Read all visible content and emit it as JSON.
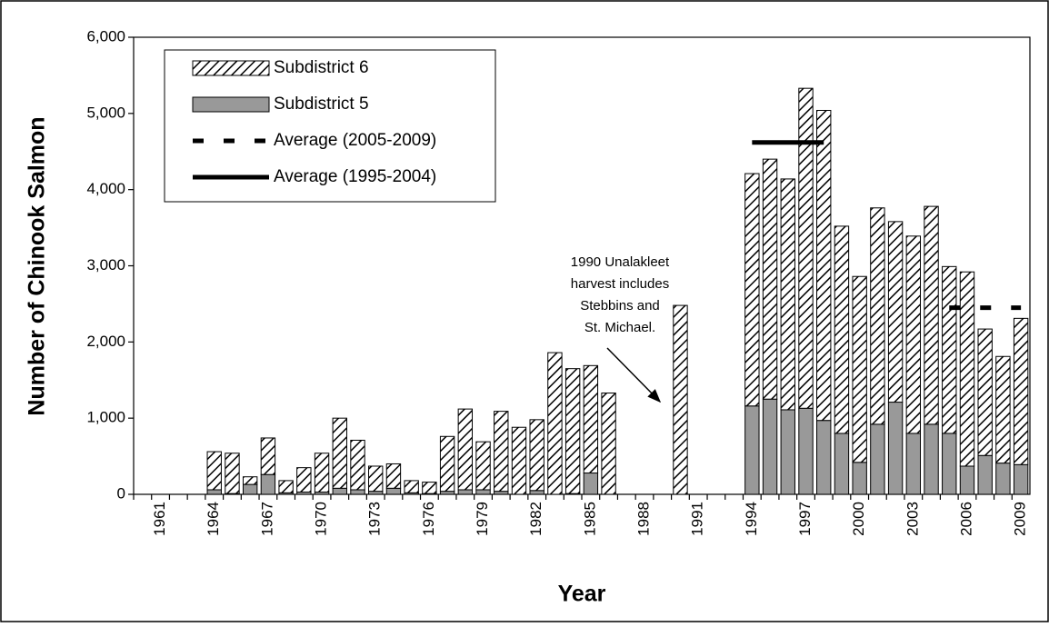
{
  "chart_data": {
    "type": "bar",
    "stacked": true,
    "x_label": "Year",
    "y_label": "Number of Chinook Salmon",
    "categories": [
      null,
      "1961",
      null,
      null,
      "1964",
      null,
      null,
      "1967",
      null,
      null,
      "1970",
      null,
      null,
      "1973",
      null,
      null,
      "1976",
      null,
      null,
      "1979",
      null,
      null,
      "1982",
      null,
      null,
      "1985",
      null,
      null,
      "1988",
      null,
      null,
      "1991",
      null,
      null,
      "1994",
      null,
      null,
      "1997",
      null,
      null,
      "2000",
      null,
      null,
      "2003",
      null,
      null,
      "2006",
      null,
      null,
      "2009"
    ],
    "ylim": [
      0,
      6000
    ],
    "yticks": [
      0,
      {
        "value": 1000,
        "label": "1,000"
      },
      {
        "value": 2000,
        "label": "2,000"
      },
      {
        "value": 3000,
        "label": "3,000"
      },
      {
        "value": 4000,
        "label": "4,000"
      },
      {
        "value": 5000,
        "label": "5,000"
      },
      {
        "value": 6000,
        "label": "6,000"
      }
    ],
    "grid": false,
    "legend": "top-left",
    "series": [
      {
        "name": "Subdistrict 6",
        "type": "bar",
        "fill": "hatch",
        "color": "#000000",
        "values": [
          null,
          null,
          null,
          null,
          500,
          530,
          100,
          480,
          160,
          320,
          510,
          920,
          650,
          330,
          320,
          160,
          150,
          720,
          1060,
          630,
          1050,
          880,
          930,
          1860,
          1640,
          1410,
          1330,
          null,
          null,
          null,
          2480,
          null,
          null,
          null,
          3050,
          3150,
          3030,
          4200,
          4070,
          2720,
          2440,
          2840,
          2370,
          2590,
          2860,
          2190,
          2550,
          1660,
          1400,
          1920
        ]
      },
      {
        "name": "Subdistrict 5",
        "type": "bar",
        "fill": "solid",
        "color": "#999999",
        "values": [
          null,
          null,
          null,
          null,
          60,
          10,
          130,
          260,
          20,
          30,
          30,
          80,
          60,
          40,
          80,
          20,
          10,
          40,
          60,
          60,
          40,
          0,
          50,
          0,
          10,
          280,
          0,
          null,
          null,
          null,
          0,
          null,
          null,
          null,
          1160,
          1250,
          1110,
          1130,
          970,
          800,
          420,
          920,
          1210,
          800,
          920,
          800,
          370,
          510,
          410,
          390
        ]
      },
      {
        "name": "Average (2005-2009)",
        "type": "line",
        "dash": "dashed",
        "color": "#000000",
        "values": [
          null,
          null,
          null,
          null,
          null,
          null,
          null,
          null,
          null,
          null,
          null,
          null,
          null,
          null,
          null,
          null,
          null,
          null,
          null,
          null,
          null,
          null,
          null,
          null,
          null,
          null,
          null,
          null,
          null,
          null,
          null,
          null,
          null,
          null,
          null,
          null,
          null,
          null,
          null,
          null,
          null,
          null,
          null,
          null,
          null,
          2450,
          2450,
          2450,
          2450,
          2450
        ]
      },
      {
        "name": "Average (1995-2004)",
        "type": "line",
        "dash": "solid",
        "color": "#000000",
        "values": [
          null,
          null,
          null,
          null,
          null,
          null,
          null,
          null,
          null,
          null,
          null,
          null,
          null,
          null,
          null,
          null,
          null,
          null,
          null,
          null,
          null,
          null,
          null,
          null,
          null,
          null,
          null,
          null,
          null,
          null,
          null,
          null,
          null,
          null,
          4620,
          4620,
          4620,
          4620,
          4620,
          null,
          null,
          null,
          null,
          null,
          null,
          null,
          null,
          null,
          null,
          null
        ]
      }
    ],
    "annotation": {
      "lines": [
        "1990 Unalakleet",
        "harvest includes",
        "Stebbins and",
        "St. Michael."
      ]
    }
  }
}
